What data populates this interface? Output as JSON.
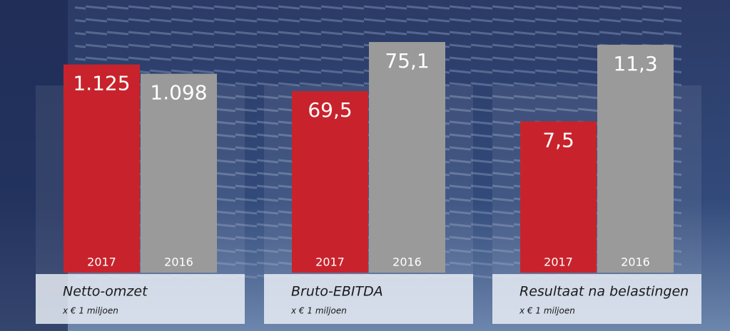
{
  "chart_data": [
    {
      "type": "bar",
      "title": "Netto-omzet",
      "subtitle": "x € 1 miljoen",
      "categories": [
        "2017",
        "2016"
      ],
      "values": [
        1125,
        1098
      ],
      "value_labels": [
        "1.125",
        "1.098"
      ],
      "colors": [
        "#c8232c",
        "#9a9a9a"
      ],
      "ylim": [
        517,
        1224
      ]
    },
    {
      "type": "bar",
      "title": "Bruto-EBITDA",
      "subtitle": "x € 1 miljoen",
      "categories": [
        "2017",
        "2016"
      ],
      "values": [
        69.5,
        75.1
      ],
      "value_labels": [
        "69,5",
        "75,1"
      ],
      "colors": [
        "#c8232c",
        "#9a9a9a"
      ],
      "ylim": [
        48.8,
        76.4
      ]
    },
    {
      "type": "bar",
      "title": "Resultaat na belastingen",
      "subtitle": "x € 1 miljoen",
      "categories": [
        "2017",
        "2016"
      ],
      "values": [
        7.5,
        11.3
      ],
      "value_labels": [
        "7,5",
        "11,3"
      ],
      "colors": [
        "#c8232c",
        "#9a9a9a"
      ],
      "ylim": [
        0,
        12
      ]
    }
  ]
}
